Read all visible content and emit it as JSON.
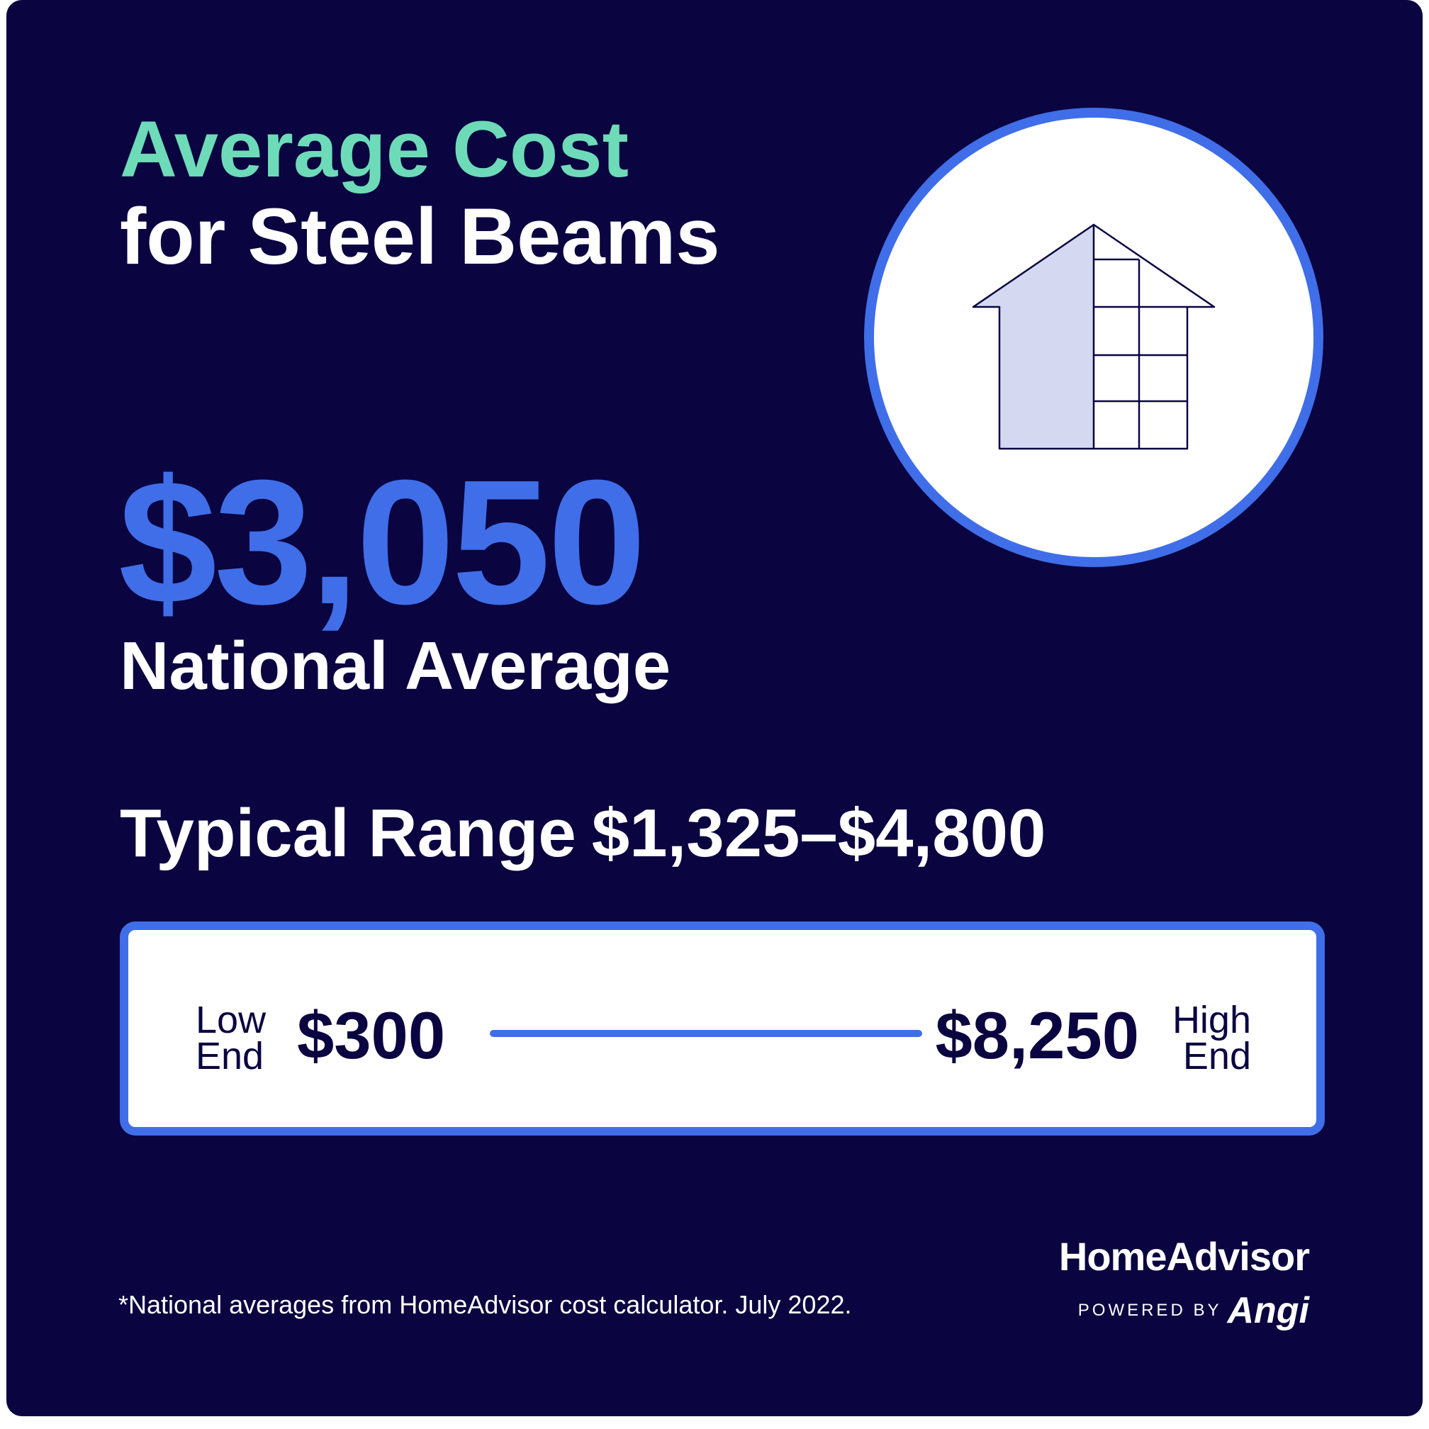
{
  "title": {
    "line1": "Average Cost",
    "line2": "for Steel Beams"
  },
  "national_average": {
    "value": "$3,050",
    "label": "National Average"
  },
  "typical_range": {
    "label": "Typical Range",
    "value": "$1,325–$4,800"
  },
  "range_bar": {
    "low_label_line1": "Low",
    "low_label_line2": "End",
    "low_value": "$300",
    "high_value": "$8,250",
    "high_label_line1": "High",
    "high_label_line2": "End"
  },
  "footnote": "*National averages from HomeAdvisor cost calculator. July 2022.",
  "brand": {
    "name": "HomeAdvisor",
    "powered_by": "POWERED BY",
    "partner": "Angi"
  },
  "icon": "house-frame-icon",
  "colors": {
    "background": "#0a0440",
    "accent_teal": "#6ddbb8",
    "accent_blue": "#3f6ee8",
    "house_fill": "#d4d9f1"
  }
}
